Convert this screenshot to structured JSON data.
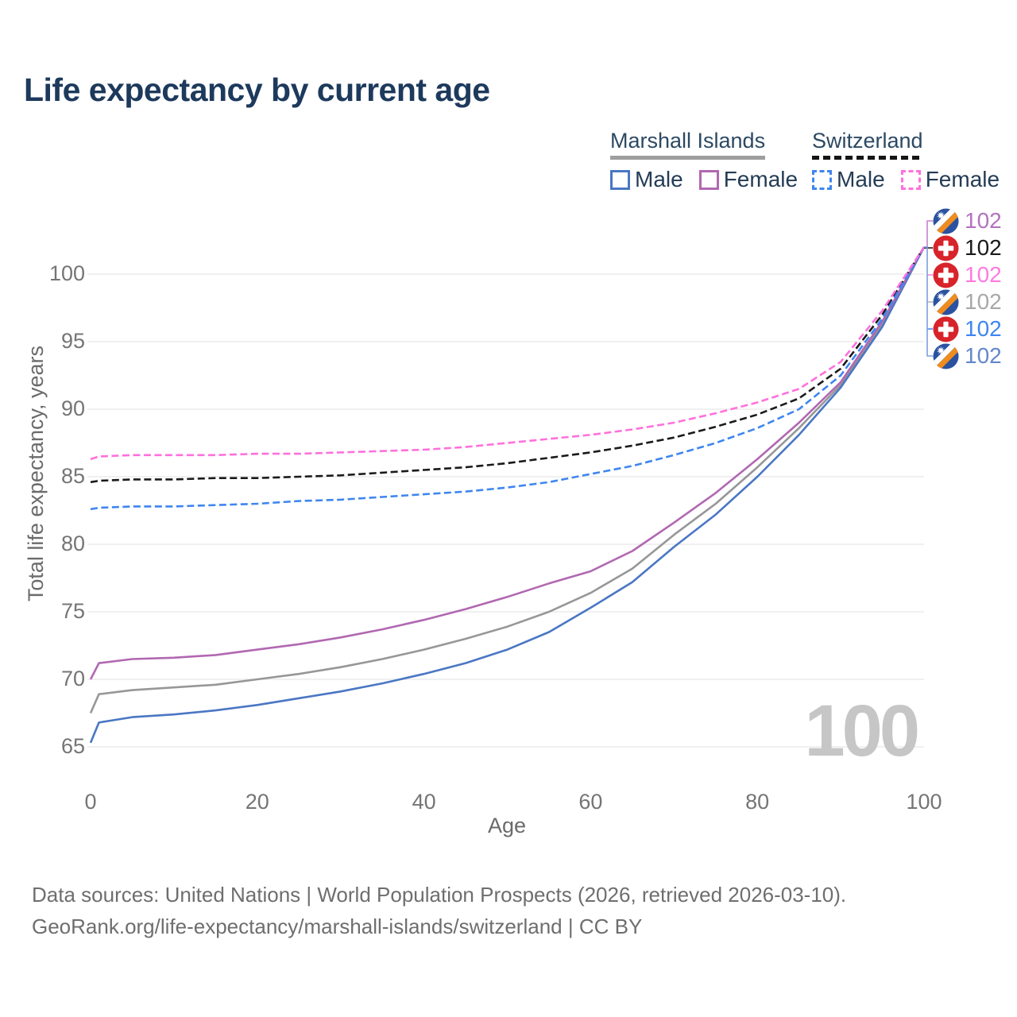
{
  "title": "Life expectancy by current age",
  "legend": {
    "groups": [
      {
        "label": "Marshall Islands",
        "line_style": "solid",
        "underline_color": "#9e9e9e",
        "items": [
          {
            "label": "Male",
            "color": "#4a77c4",
            "dashed": false
          },
          {
            "label": "Female",
            "color": "#b168b1",
            "dashed": false
          }
        ]
      },
      {
        "label": "Switzerland",
        "line_style": "dashed",
        "underline_color": "#151515",
        "items": [
          {
            "label": "Male",
            "color": "#3e86f0",
            "dashed": true
          },
          {
            "label": "Female",
            "color": "#ff70dc",
            "dashed": true
          }
        ]
      }
    ]
  },
  "chart_data": {
    "type": "line",
    "title": "Life expectancy by current age",
    "xlabel": "Age",
    "ylabel": "Total life expectancy, years",
    "xlim": [
      0,
      100
    ],
    "ylim": [
      63,
      104
    ],
    "x_ticks": [
      0,
      20,
      40,
      60,
      80,
      100
    ],
    "y_ticks": [
      65,
      70,
      75,
      80,
      85,
      90,
      95,
      100
    ],
    "grid": "horizontal",
    "x": [
      0,
      1,
      5,
      10,
      15,
      20,
      25,
      30,
      35,
      40,
      45,
      50,
      55,
      60,
      65,
      70,
      75,
      80,
      85,
      90,
      95,
      100
    ],
    "series": [
      {
        "name": "Marshall Islands Both sexes",
        "country": "Marshall Islands",
        "sex": "Both",
        "style": "solid",
        "color": "#979797",
        "values": [
          67.5,
          68.9,
          69.2,
          69.4,
          69.6,
          70.0,
          70.4,
          70.9,
          71.5,
          72.2,
          73.0,
          73.9,
          75.0,
          76.4,
          78.2,
          80.7,
          83.0,
          85.7,
          88.6,
          91.8,
          96.3,
          102
        ]
      },
      {
        "name": "Marshall Islands Male",
        "country": "Marshall Islands",
        "sex": "Male",
        "style": "solid",
        "color": "#4a77c4",
        "values": [
          65.3,
          66.8,
          67.2,
          67.4,
          67.7,
          68.1,
          68.6,
          69.1,
          69.7,
          70.4,
          71.2,
          72.2,
          73.5,
          75.3,
          77.2,
          79.8,
          82.2,
          85.0,
          88.1,
          91.6,
          96.1,
          102
        ]
      },
      {
        "name": "Marshall Islands Female",
        "country": "Marshall Islands",
        "sex": "Female",
        "style": "solid",
        "color": "#b168b1",
        "values": [
          70.0,
          71.2,
          71.5,
          71.6,
          71.8,
          72.2,
          72.6,
          73.1,
          73.7,
          74.4,
          75.2,
          76.1,
          77.1,
          78.0,
          79.5,
          81.6,
          83.8,
          86.3,
          89.0,
          92.0,
          96.5,
          102
        ]
      },
      {
        "name": "Switzerland Both sexes",
        "country": "Switzerland",
        "sex": "Both",
        "style": "dashed",
        "color": "#1a1a1a",
        "values": [
          84.6,
          84.7,
          84.8,
          84.8,
          84.9,
          84.9,
          85.0,
          85.1,
          85.3,
          85.5,
          85.7,
          86.0,
          86.4,
          86.8,
          87.3,
          87.9,
          88.7,
          89.6,
          90.8,
          93.0,
          97.0,
          102
        ]
      },
      {
        "name": "Switzerland Male",
        "country": "Switzerland",
        "sex": "Male",
        "style": "dashed",
        "color": "#3e86f0",
        "values": [
          82.6,
          82.7,
          82.8,
          82.8,
          82.9,
          83.0,
          83.2,
          83.3,
          83.5,
          83.7,
          83.9,
          84.2,
          84.6,
          85.2,
          85.8,
          86.6,
          87.5,
          88.6,
          90.0,
          92.5,
          96.7,
          102
        ]
      },
      {
        "name": "Switzerland Female",
        "country": "Switzerland",
        "sex": "Female",
        "style": "dashed",
        "color": "#ff70dc",
        "values": [
          86.3,
          86.5,
          86.6,
          86.6,
          86.6,
          86.7,
          86.7,
          86.8,
          86.9,
          87.0,
          87.2,
          87.5,
          87.8,
          88.1,
          88.5,
          89.0,
          89.7,
          90.5,
          91.5,
          93.5,
          97.3,
          102
        ]
      }
    ],
    "end_labels": [
      {
        "flag": "marshall-islands",
        "series": "Marshall Islands Female",
        "value": "102",
        "color": "#b273bd",
        "tick_color": "#c77fd4"
      },
      {
        "flag": "switzerland",
        "series": "Switzerland Both sexes",
        "value": "102",
        "color": "#1a1a1a",
        "tick_color": "#1a1a1a"
      },
      {
        "flag": "switzerland",
        "series": "Switzerland Female",
        "value": "102",
        "color": "#ff7ae0",
        "tick_color": "#ff85e3"
      },
      {
        "flag": "marshall-islands",
        "series": "Marshall Islands Both sexes",
        "value": "102",
        "color": "#a8a8a8",
        "tick_color": "#b5b5b5"
      },
      {
        "flag": "switzerland",
        "series": "Switzerland Male",
        "value": "102",
        "color": "#3e86f0",
        "tick_color": "#4b8bf5"
      },
      {
        "flag": "marshall-islands",
        "series": "Marshall Islands Male",
        "value": "102",
        "color": "#6487cc",
        "tick_color": "#7b9fe0"
      }
    ],
    "legend_position": "top-right"
  },
  "watermark": "100",
  "footer": {
    "line1": "Data sources: United Nations | World Population Prospects (2026, retrieved 2026-03-10).",
    "line2": "GeoRank.org/life-expectancy/marshall-islands/switzerland | CC BY"
  }
}
